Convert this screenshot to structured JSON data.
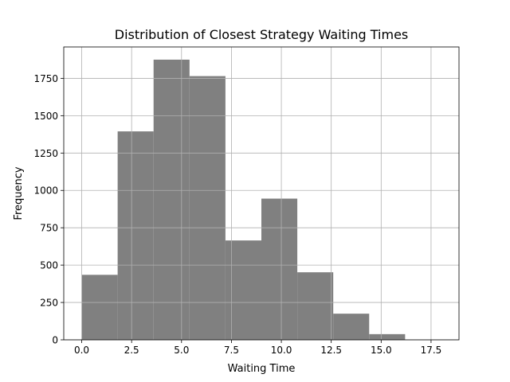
{
  "chart_data": {
    "type": "bar",
    "subtype": "histogram",
    "title": "Distribution of Closest Strategy Waiting Times",
    "xlabel": "Waiting Time",
    "ylabel": "Frequency",
    "xlim": [
      -0.9,
      18.9
    ],
    "ylim": [
      0,
      1960
    ],
    "xticks": [
      0.0,
      2.5,
      5.0,
      7.5,
      10.0,
      12.5,
      15.0,
      17.5
    ],
    "xtick_labels": [
      "0.0",
      "2.5",
      "5.0",
      "7.5",
      "10.0",
      "12.5",
      "15.0",
      "17.5"
    ],
    "yticks": [
      0,
      250,
      500,
      750,
      1000,
      1250,
      1500,
      1750
    ],
    "ytick_labels": [
      "0",
      "250",
      "500",
      "750",
      "1000",
      "1250",
      "1500",
      "1750"
    ],
    "grid": true,
    "bar_color": "#808080",
    "bins": [
      {
        "x0": 0.0,
        "x1": 1.8,
        "value": 435
      },
      {
        "x0": 1.8,
        "x1": 3.6,
        "value": 1395
      },
      {
        "x0": 3.6,
        "x1": 5.4,
        "value": 1875
      },
      {
        "x0": 5.4,
        "x1": 7.2,
        "value": 1765
      },
      {
        "x0": 7.2,
        "x1": 9.0,
        "value": 665
      },
      {
        "x0": 9.0,
        "x1": 10.8,
        "value": 945
      },
      {
        "x0": 10.8,
        "x1": 12.6,
        "value": 452
      },
      {
        "x0": 12.6,
        "x1": 14.4,
        "value": 175
      },
      {
        "x0": 14.4,
        "x1": 16.2,
        "value": 38
      },
      {
        "x0": 16.2,
        "x1": 18.0,
        "value": 0
      }
    ]
  }
}
